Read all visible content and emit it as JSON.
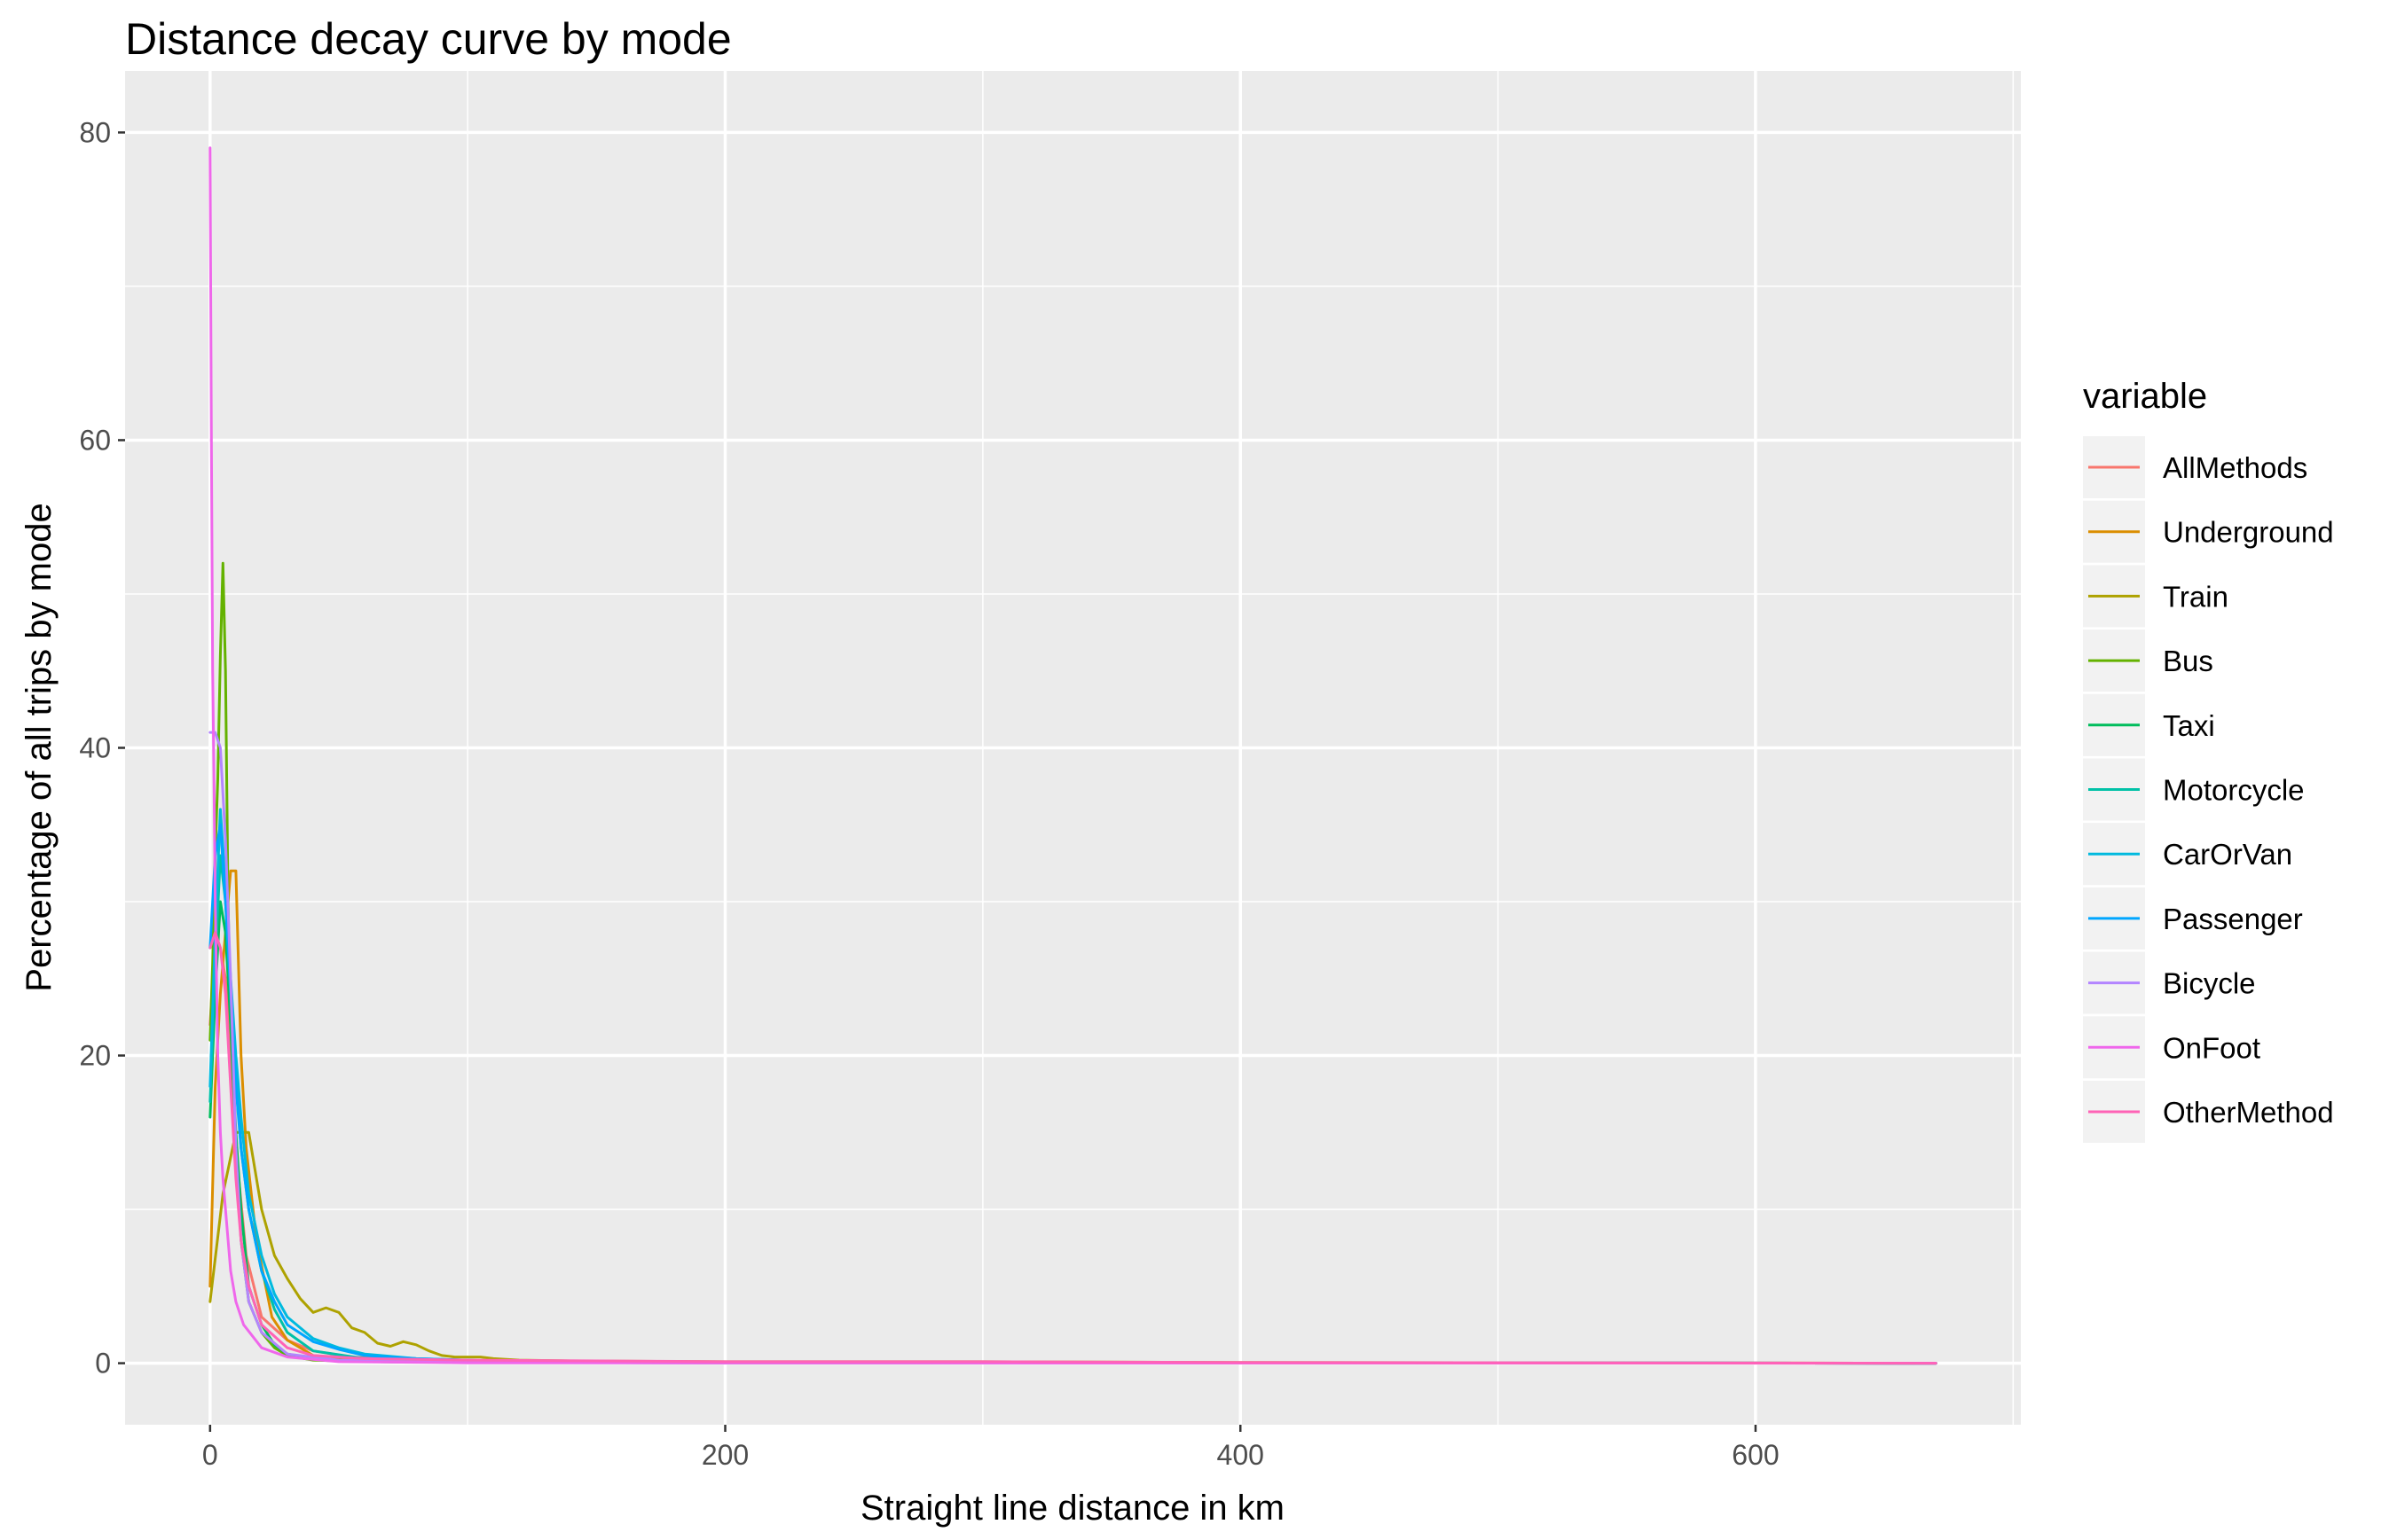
{
  "chart_data": {
    "type": "line",
    "title": "Distance decay curve by mode",
    "xlabel": "Straight line distance in km",
    "ylabel": "Percentage of all trips by mode",
    "xlim": [
      -33,
      703
    ],
    "ylim": [
      -4,
      84
    ],
    "x_ticks": [
      "0",
      "200",
      "400",
      "600"
    ],
    "y_ticks": [
      "0",
      "20",
      "40",
      "60",
      "80"
    ],
    "grid": true,
    "legend": {
      "title": "variable",
      "position": "right"
    },
    "series": [
      {
        "name": "AllMethods",
        "color": "#F8766D",
        "x": [
          0,
          2,
          4,
          6,
          8,
          10,
          14,
          20,
          30,
          40,
          55,
          80,
          120,
          200,
          300,
          400,
          670
        ],
        "y": [
          22,
          28,
          27,
          25,
          20,
          14,
          7,
          3,
          1.5,
          0.8,
          0.4,
          0.2,
          0.1,
          0.05,
          0.03,
          0.02,
          0
        ]
      },
      {
        "name": "Underground",
        "color": "#DB8E00",
        "x": [
          0,
          2,
          4,
          6,
          8,
          10,
          12,
          14,
          18,
          24,
          30,
          40,
          60,
          80,
          120,
          200,
          300,
          670
        ],
        "y": [
          5,
          18,
          24,
          28,
          32,
          32,
          20,
          14,
          8,
          3,
          1.5,
          0.5,
          0.2,
          0.1,
          0.05,
          0.03,
          0.02,
          0
        ]
      },
      {
        "name": "Train",
        "color": "#AEA200",
        "x": [
          0,
          5,
          10,
          15,
          20,
          25,
          30,
          35,
          40,
          45,
          50,
          55,
          60,
          65,
          70,
          75,
          80,
          85,
          90,
          95,
          100,
          105,
          110,
          120,
          140,
          200,
          300,
          400,
          670
        ],
        "y": [
          4,
          11,
          15,
          15,
          10,
          7,
          5.5,
          4.2,
          3.3,
          3.6,
          3.3,
          2.3,
          2.0,
          1.3,
          1.1,
          1.4,
          1.2,
          0.8,
          0.5,
          0.4,
          0.4,
          0.4,
          0.3,
          0.2,
          0.15,
          0.1,
          0.1,
          0.05,
          0
        ]
      },
      {
        "name": "Bus",
        "color": "#64B200",
        "x": [
          0,
          1,
          2,
          3,
          4,
          5,
          6,
          7,
          8,
          10,
          12,
          15,
          20,
          25,
          30,
          40,
          60,
          100,
          200,
          670
        ],
        "y": [
          21,
          26,
          33,
          38,
          46,
          52,
          45,
          30,
          22,
          14,
          8,
          4,
          2,
          1,
          0.5,
          0.2,
          0.1,
          0.05,
          0.02,
          0
        ]
      },
      {
        "name": "Taxi",
        "color": "#00BD5C",
        "x": [
          0,
          2,
          4,
          6,
          8,
          10,
          12,
          15,
          20,
          25,
          30,
          40,
          60,
          100,
          200,
          670
        ],
        "y": [
          16,
          24,
          30,
          28,
          22,
          15,
          10,
          5,
          2.5,
          1.2,
          0.6,
          0.3,
          0.1,
          0.05,
          0.02,
          0
        ]
      },
      {
        "name": "Motorcycle",
        "color": "#00C1A7",
        "x": [
          0,
          2,
          4,
          6,
          8,
          10,
          12,
          15,
          20,
          25,
          30,
          40,
          60,
          100,
          200,
          670
        ],
        "y": [
          17,
          26,
          33,
          30,
          24,
          19,
          14,
          10,
          6,
          3.5,
          2,
          0.8,
          0.3,
          0.1,
          0.05,
          0
        ]
      },
      {
        "name": "CarOrVan",
        "color": "#00BADE",
        "x": [
          0,
          2,
          4,
          6,
          8,
          10,
          12,
          15,
          20,
          25,
          30,
          40,
          50,
          60,
          80,
          120,
          200,
          670
        ],
        "y": [
          18,
          28,
          36,
          31,
          25,
          20,
          16,
          11,
          7,
          4.5,
          3,
          1.6,
          1,
          0.6,
          0.3,
          0.1,
          0.05,
          0
        ]
      },
      {
        "name": "Passenger",
        "color": "#00A6FF",
        "x": [
          0,
          2,
          4,
          6,
          8,
          10,
          12,
          15,
          20,
          25,
          30,
          40,
          50,
          60,
          80,
          120,
          200,
          670
        ],
        "y": [
          27,
          33,
          35,
          30,
          24,
          18,
          14,
          10,
          6,
          4,
          2.5,
          1.4,
          0.9,
          0.5,
          0.3,
          0.1,
          0.05,
          0
        ]
      },
      {
        "name": "Bicycle",
        "color": "#B385FF",
        "x": [
          0,
          2,
          4,
          6,
          8,
          10,
          12,
          15,
          20,
          30,
          50,
          100,
          200,
          670
        ],
        "y": [
          41,
          41,
          40,
          34,
          25,
          14,
          8,
          4,
          2,
          0.6,
          0.2,
          0.05,
          0.02,
          0
        ]
      },
      {
        "name": "OnFoot",
        "color": "#EF67EB",
        "x": [
          0,
          0.5,
          1,
          1.5,
          2,
          3,
          4,
          5,
          6,
          8,
          10,
          13,
          20,
          30,
          50,
          100,
          200,
          670
        ],
        "y": [
          79,
          60,
          45,
          38,
          30,
          20,
          15,
          12,
          10,
          6,
          4,
          2.5,
          1,
          0.4,
          0.1,
          0.02,
          0.01,
          0
        ]
      },
      {
        "name": "OtherMethod",
        "color": "#FF63B6",
        "x": [
          0,
          2,
          4,
          6,
          8,
          10,
          12,
          15,
          20,
          30,
          40,
          60,
          100,
          200,
          300,
          400,
          670
        ],
        "y": [
          27,
          28,
          27,
          24,
          18,
          12,
          8,
          5,
          2.5,
          1,
          0.5,
          0.3,
          0.2,
          0.1,
          0.1,
          0.05,
          0
        ]
      }
    ]
  }
}
